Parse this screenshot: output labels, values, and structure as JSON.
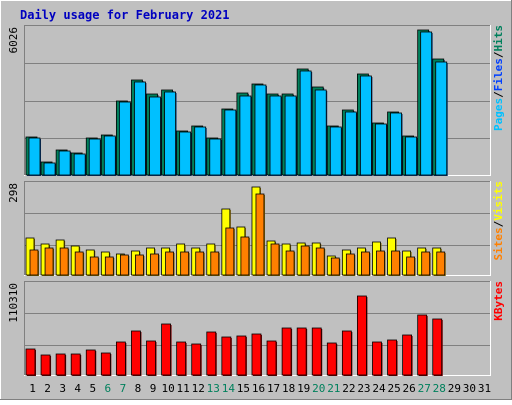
{
  "chart_data": {
    "type": "bar",
    "title": "Daily usage for February 2021",
    "categories": [
      "1",
      "2",
      "3",
      "4",
      "5",
      "6",
      "7",
      "8",
      "9",
      "10",
      "11",
      "12",
      "13",
      "14",
      "15",
      "16",
      "17",
      "18",
      "19",
      "20",
      "21",
      "22",
      "23",
      "24",
      "25",
      "26",
      "27",
      "28",
      "29",
      "30",
      "31"
    ],
    "weekend_days": [
      "6",
      "7",
      "13",
      "14",
      "20",
      "21",
      "27",
      "28"
    ],
    "panels": [
      {
        "id": "pages-files-hits",
        "ymax_label": "6026",
        "ylim": [
          0,
          6026
        ],
        "legend": [
          "Pages",
          "Files",
          "Hits"
        ],
        "series": [
          {
            "name": "Hits",
            "color": "#00805c",
            "values": [
              1550,
              520,
              1030,
              900,
              1500,
              1620,
              3050,
              3900,
              3300,
              3500,
              1800,
              2000,
              1500,
              2700,
              3350,
              3750,
              3300,
              3300,
              4350,
              3600,
              2000,
              2650,
              4150,
              2150,
              2600,
              1600,
              5960,
              4750,
              0,
              0,
              0
            ]
          },
          {
            "name": "Files",
            "color": "#00c0ff",
            "values": [
              1520,
              500,
              1000,
              860,
              1480,
              1600,
              3000,
              3800,
              3200,
              3400,
              1750,
              1950,
              1480,
              2650,
              3250,
              3700,
              3250,
              3250,
              4250,
              3500,
              1950,
              2600,
              4050,
              2100,
              2550,
              1550,
              5850,
              4650,
              0,
              0,
              0
            ]
          }
        ]
      },
      {
        "id": "visits-sites",
        "ymax_label": "298",
        "ylim": [
          0,
          298
        ],
        "legend": [
          "Sites",
          "Visits"
        ],
        "series": [
          {
            "name": "Visits",
            "color": "#ffff00",
            "values": [
              120,
              100,
              115,
              95,
              82,
              75,
              70,
              80,
              90,
              90,
              100,
              90,
              100,
              215,
              158,
              288,
              110,
              100,
              105,
              105,
              62,
              82,
              90,
              108,
              120,
              80,
              90,
              90,
              0,
              0,
              0
            ]
          },
          {
            "name": "Sites",
            "color": "#ff8000",
            "values": [
              82,
              88,
              90,
              75,
              58,
              60,
              65,
              64,
              68,
              75,
              75,
              76,
              75,
              155,
              125,
              265,
              100,
              80,
              95,
              90,
              55,
              70,
              75,
              80,
              80,
              60,
              75,
              75,
              0,
              0,
              0
            ]
          }
        ]
      },
      {
        "id": "kbytes",
        "ymax_label": "110310",
        "ylim": [
          0,
          110310
        ],
        "legend": [
          "KBytes"
        ],
        "series": [
          {
            "name": "KBytes",
            "color": "#ff0000",
            "values": [
              31000,
              24000,
              25500,
              25500,
              30000,
              26500,
              40000,
              53500,
              41000,
              62000,
              40000,
              38000,
              52000,
              45500,
              47000,
              50000,
              41000,
              57000,
              57500,
              57500,
              39000,
              53500,
              95500,
              40000,
              42000,
              48000,
              73000,
              68000,
              0,
              0,
              0
            ]
          }
        ]
      }
    ]
  }
}
